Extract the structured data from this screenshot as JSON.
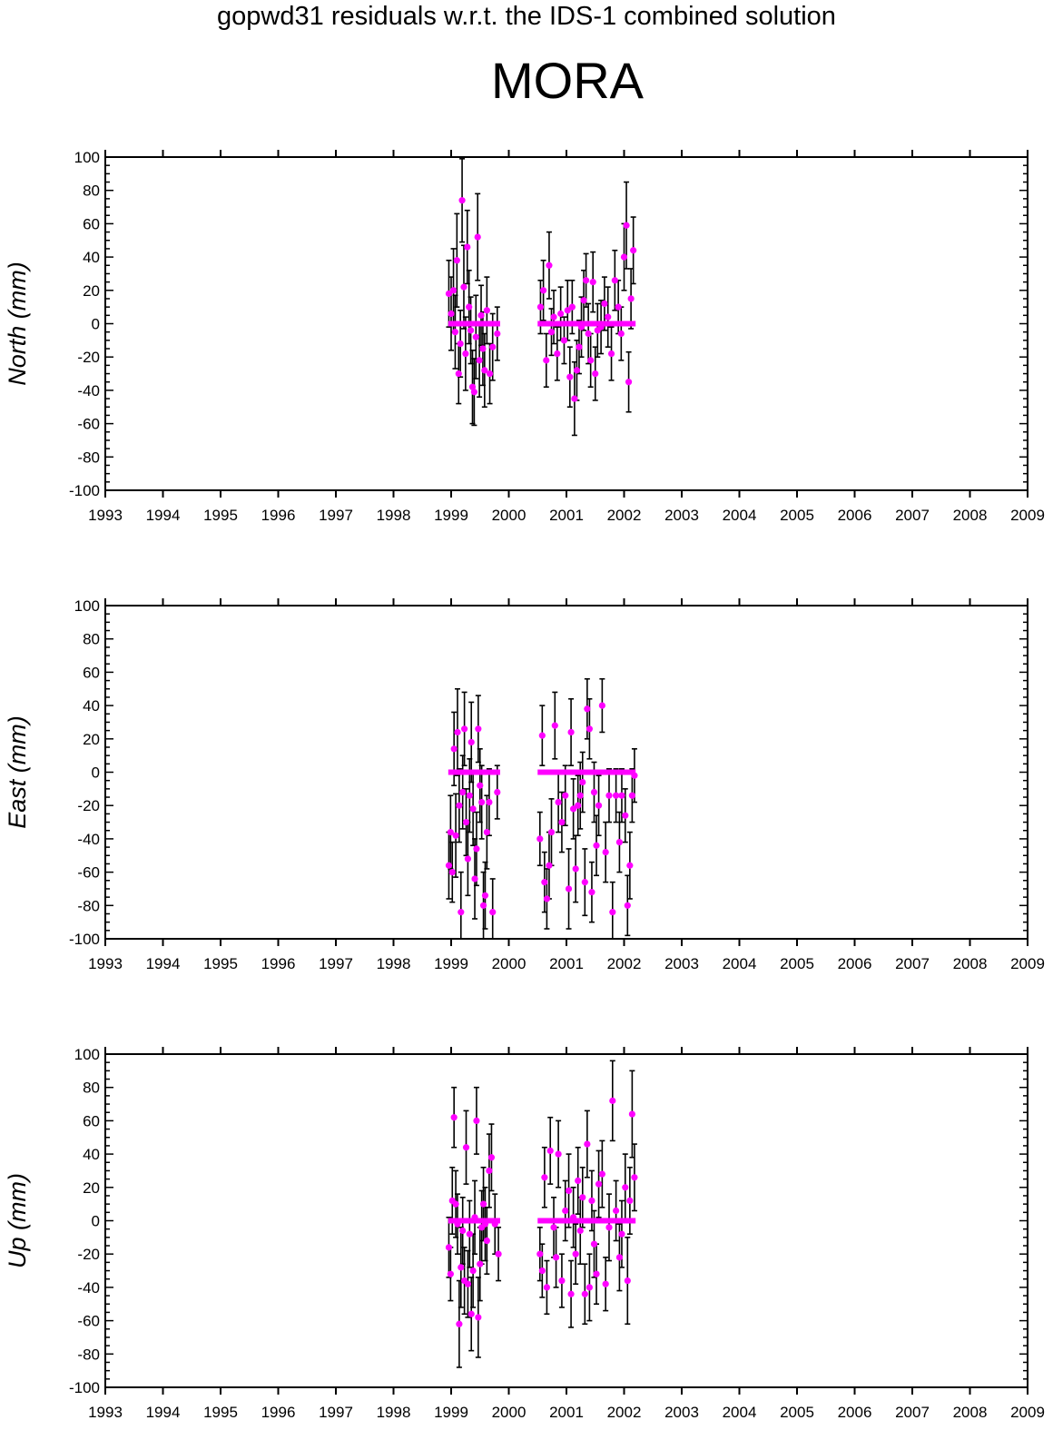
{
  "title": "gopwd31 residuals w.r.t. the IDS-1 combined solution",
  "subtitle": "MORA",
  "colors": {
    "series": "#ff00ff",
    "errorbar": "#000000",
    "axis": "#000000"
  },
  "chart_data": [
    {
      "type": "scatter",
      "ylabel": "North (mm)",
      "xlim": [
        1993,
        2009
      ],
      "ylim": [
        -100,
        100
      ],
      "xticks": [
        "1993",
        "1994",
        "1995",
        "1996",
        "1997",
        "1998",
        "1999",
        "2000",
        "2001",
        "2002",
        "2003",
        "2004",
        "2005",
        "2006",
        "2007",
        "2008",
        "2009"
      ],
      "yticks": [
        "100",
        "80",
        "60",
        "40",
        "20",
        "0",
        "-20",
        "-40",
        "-60",
        "-80",
        "-100"
      ],
      "zero_line_segments": [
        [
          1998.95,
          1999.85
        ],
        [
          2000.5,
          2002.2
        ]
      ],
      "points": [
        [
          1998.96,
          18,
          20
        ],
        [
          1999.0,
          6,
          22
        ],
        [
          1999.04,
          20,
          25
        ],
        [
          1999.07,
          -5,
          22
        ],
        [
          1999.1,
          38,
          28
        ],
        [
          1999.13,
          -30,
          18
        ],
        [
          1999.16,
          -12,
          20
        ],
        [
          1999.19,
          74,
          25
        ],
        [
          1999.22,
          22,
          25
        ],
        [
          1999.25,
          -18,
          22
        ],
        [
          1999.28,
          46,
          22
        ],
        [
          1999.31,
          10,
          22
        ],
        [
          1999.34,
          -4,
          20
        ],
        [
          1999.37,
          -38,
          22
        ],
        [
          1999.4,
          -41,
          20
        ],
        [
          1999.43,
          -8,
          25
        ],
        [
          1999.46,
          52,
          26
        ],
        [
          1999.49,
          -22,
          22
        ],
        [
          1999.52,
          5,
          18
        ],
        [
          1999.55,
          -15,
          22
        ],
        [
          1999.58,
          -28,
          22
        ],
        [
          1999.62,
          8,
          20
        ],
        [
          1999.67,
          -30,
          18
        ],
        [
          1999.72,
          -14,
          20
        ],
        [
          1999.8,
          -6,
          16
        ],
        [
          2000.55,
          10,
          16
        ],
        [
          2000.6,
          20,
          18
        ],
        [
          2000.65,
          -22,
          16
        ],
        [
          2000.7,
          35,
          20
        ],
        [
          2000.74,
          -5,
          14
        ],
        [
          2000.78,
          4,
          16
        ],
        [
          2000.84,
          -18,
          16
        ],
        [
          2000.9,
          6,
          16
        ],
        [
          2000.96,
          -10,
          14
        ],
        [
          2001.02,
          8,
          18
        ],
        [
          2001.06,
          -32,
          18
        ],
        [
          2001.1,
          10,
          16
        ],
        [
          2001.14,
          -45,
          22
        ],
        [
          2001.18,
          -28,
          18
        ],
        [
          2001.22,
          -14,
          16
        ],
        [
          2001.26,
          -2,
          18
        ],
        [
          2001.3,
          14,
          18
        ],
        [
          2001.34,
          26,
          16
        ],
        [
          2001.38,
          -6,
          18
        ],
        [
          2001.42,
          -22,
          16
        ],
        [
          2001.46,
          25,
          18
        ],
        [
          2001.5,
          -30,
          16
        ],
        [
          2001.54,
          -4,
          16
        ],
        [
          2001.6,
          -2,
          16
        ],
        [
          2001.66,
          12,
          16
        ],
        [
          2001.72,
          4,
          18
        ],
        [
          2001.78,
          -18,
          16
        ],
        [
          2001.84,
          26,
          18
        ],
        [
          2001.9,
          10,
          16
        ],
        [
          2001.95,
          -6,
          16
        ],
        [
          2002.0,
          40,
          20
        ],
        [
          2002.04,
          59,
          26
        ],
        [
          2002.08,
          -35,
          18
        ],
        [
          2002.12,
          15,
          18
        ],
        [
          2002.16,
          44,
          20
        ]
      ]
    },
    {
      "type": "scatter",
      "ylabel": "East (mm)",
      "xlim": [
        1993,
        2009
      ],
      "ylim": [
        -100,
        100
      ],
      "xticks": [
        "1993",
        "1994",
        "1995",
        "1996",
        "1997",
        "1998",
        "1999",
        "2000",
        "2001",
        "2002",
        "2003",
        "2004",
        "2005",
        "2006",
        "2007",
        "2008",
        "2009"
      ],
      "yticks": [
        "100",
        "80",
        "60",
        "40",
        "20",
        "0",
        "-20",
        "-40",
        "-60",
        "-80",
        "-100"
      ],
      "zero_line_segments": [
        [
          1998.95,
          1999.85
        ],
        [
          2000.5,
          2002.2
        ]
      ],
      "points": [
        [
          1998.96,
          -56,
          20
        ],
        [
          1998.99,
          -36,
          22
        ],
        [
          1999.02,
          -60,
          18
        ],
        [
          1999.05,
          14,
          22
        ],
        [
          1999.08,
          -38,
          25
        ],
        [
          1999.11,
          24,
          26
        ],
        [
          1999.14,
          -20,
          22
        ],
        [
          1999.17,
          -84,
          24
        ],
        [
          1999.2,
          -12,
          22
        ],
        [
          1999.23,
          26,
          22
        ],
        [
          1999.26,
          -30,
          20
        ],
        [
          1999.29,
          -52,
          22
        ],
        [
          1999.32,
          -14,
          22
        ],
        [
          1999.35,
          18,
          24
        ],
        [
          1999.38,
          -22,
          22
        ],
        [
          1999.41,
          -64,
          24
        ],
        [
          1999.44,
          -46,
          22
        ],
        [
          1999.47,
          26,
          20
        ],
        [
          1999.5,
          -8,
          22
        ],
        [
          1999.53,
          -18,
          22
        ],
        [
          1999.56,
          -80,
          20
        ],
        [
          1999.59,
          -74,
          20
        ],
        [
          1999.62,
          -36,
          22
        ],
        [
          1999.66,
          -18,
          20
        ],
        [
          1999.72,
          -84,
          20
        ],
        [
          1999.8,
          -12,
          16
        ],
        [
          2000.54,
          -40,
          16
        ],
        [
          2000.58,
          22,
          18
        ],
        [
          2000.62,
          -66,
          18
        ],
        [
          2000.66,
          -76,
          18
        ],
        [
          2000.7,
          -56,
          20
        ],
        [
          2000.74,
          -36,
          20
        ],
        [
          2000.8,
          28,
          20
        ],
        [
          2000.86,
          -18,
          18
        ],
        [
          2000.92,
          -30,
          18
        ],
        [
          2000.98,
          -14,
          18
        ],
        [
          2001.04,
          -70,
          24
        ],
        [
          2001.08,
          24,
          20
        ],
        [
          2001.12,
          -22,
          18
        ],
        [
          2001.16,
          -58,
          20
        ],
        [
          2001.2,
          -20,
          18
        ],
        [
          2001.24,
          -14,
          20
        ],
        [
          2001.28,
          -6,
          18
        ],
        [
          2001.32,
          -66,
          20
        ],
        [
          2001.36,
          38,
          18
        ],
        [
          2001.4,
          26,
          18
        ],
        [
          2001.44,
          -72,
          18
        ],
        [
          2001.48,
          -12,
          18
        ],
        [
          2001.52,
          -44,
          18
        ],
        [
          2001.56,
          -20,
          18
        ],
        [
          2001.62,
          40,
          16
        ],
        [
          2001.68,
          -48,
          18
        ],
        [
          2001.74,
          -14,
          16
        ],
        [
          2001.8,
          -84,
          18
        ],
        [
          2001.86,
          -14,
          16
        ],
        [
          2001.92,
          -42,
          18
        ],
        [
          2001.96,
          -14,
          16
        ],
        [
          2002.02,
          -26,
          16
        ],
        [
          2002.06,
          -80,
          18
        ],
        [
          2002.1,
          -56,
          20
        ],
        [
          2002.14,
          -14,
          16
        ],
        [
          2002.18,
          -2,
          16
        ]
      ]
    },
    {
      "type": "scatter",
      "ylabel": "Up (mm)",
      "xlim": [
        1993,
        2009
      ],
      "ylim": [
        -100,
        100
      ],
      "xticks": [
        "1993",
        "1994",
        "1995",
        "1996",
        "1997",
        "1998",
        "1999",
        "2000",
        "2001",
        "2002",
        "2003",
        "2004",
        "2005",
        "2006",
        "2007",
        "2008",
        "2009"
      ],
      "yticks": [
        "100",
        "80",
        "60",
        "40",
        "20",
        "0",
        "-20",
        "-40",
        "-60",
        "-80",
        "-100"
      ],
      "zero_line_segments": [
        [
          1998.95,
          1999.85
        ],
        [
          2000.5,
          2002.2
        ]
      ],
      "points": [
        [
          1998.96,
          -16,
          18
        ],
        [
          1998.99,
          -32,
          16
        ],
        [
          1999.02,
          12,
          20
        ],
        [
          1999.05,
          62,
          18
        ],
        [
          1999.08,
          10,
          20
        ],
        [
          1999.11,
          -2,
          18
        ],
        [
          1999.14,
          -62,
          26
        ],
        [
          1999.17,
          -28,
          24
        ],
        [
          1999.2,
          -6,
          20
        ],
        [
          1999.23,
          -36,
          20
        ],
        [
          1999.26,
          44,
          22
        ],
        [
          1999.29,
          -38,
          20
        ],
        [
          1999.32,
          -8,
          20
        ],
        [
          1999.35,
          -56,
          22
        ],
        [
          1999.38,
          -30,
          22
        ],
        [
          1999.41,
          2,
          22
        ],
        [
          1999.44,
          60,
          20
        ],
        [
          1999.47,
          -58,
          24
        ],
        [
          1999.5,
          -26,
          22
        ],
        [
          1999.53,
          -4,
          22
        ],
        [
          1999.56,
          10,
          22
        ],
        [
          1999.59,
          -2,
          22
        ],
        [
          1999.62,
          -12,
          20
        ],
        [
          1999.66,
          30,
          22
        ],
        [
          1999.7,
          38,
          20
        ],
        [
          1999.76,
          -2,
          18
        ],
        [
          1999.82,
          -20,
          16
        ],
        [
          2000.54,
          -20,
          16
        ],
        [
          2000.58,
          -30,
          16
        ],
        [
          2000.62,
          26,
          18
        ],
        [
          2000.66,
          -40,
          16
        ],
        [
          2000.72,
          42,
          20
        ],
        [
          2000.78,
          -4,
          18
        ],
        [
          2000.82,
          -22,
          18
        ],
        [
          2000.86,
          40,
          20
        ],
        [
          2000.92,
          -36,
          16
        ],
        [
          2000.98,
          6,
          18
        ],
        [
          2001.04,
          18,
          22
        ],
        [
          2001.08,
          -44,
          20
        ],
        [
          2001.12,
          2,
          18
        ],
        [
          2001.16,
          -20,
          18
        ],
        [
          2001.2,
          24,
          20
        ],
        [
          2001.24,
          -6,
          20
        ],
        [
          2001.28,
          14,
          18
        ],
        [
          2001.32,
          -44,
          18
        ],
        [
          2001.36,
          46,
          20
        ],
        [
          2001.4,
          -40,
          20
        ],
        [
          2001.44,
          12,
          18
        ],
        [
          2001.48,
          -14,
          20
        ],
        [
          2001.52,
          -32,
          18
        ],
        [
          2001.56,
          22,
          20
        ],
        [
          2001.62,
          28,
          20
        ],
        [
          2001.68,
          -38,
          16
        ],
        [
          2001.74,
          -4,
          20
        ],
        [
          2001.8,
          72,
          24
        ],
        [
          2001.86,
          6,
          18
        ],
        [
          2001.92,
          -22,
          20
        ],
        [
          2001.96,
          -8,
          20
        ],
        [
          2002.02,
          20,
          20
        ],
        [
          2002.06,
          -36,
          26
        ],
        [
          2002.1,
          12,
          20
        ],
        [
          2002.14,
          64,
          26
        ],
        [
          2002.18,
          26,
          20
        ]
      ]
    }
  ]
}
